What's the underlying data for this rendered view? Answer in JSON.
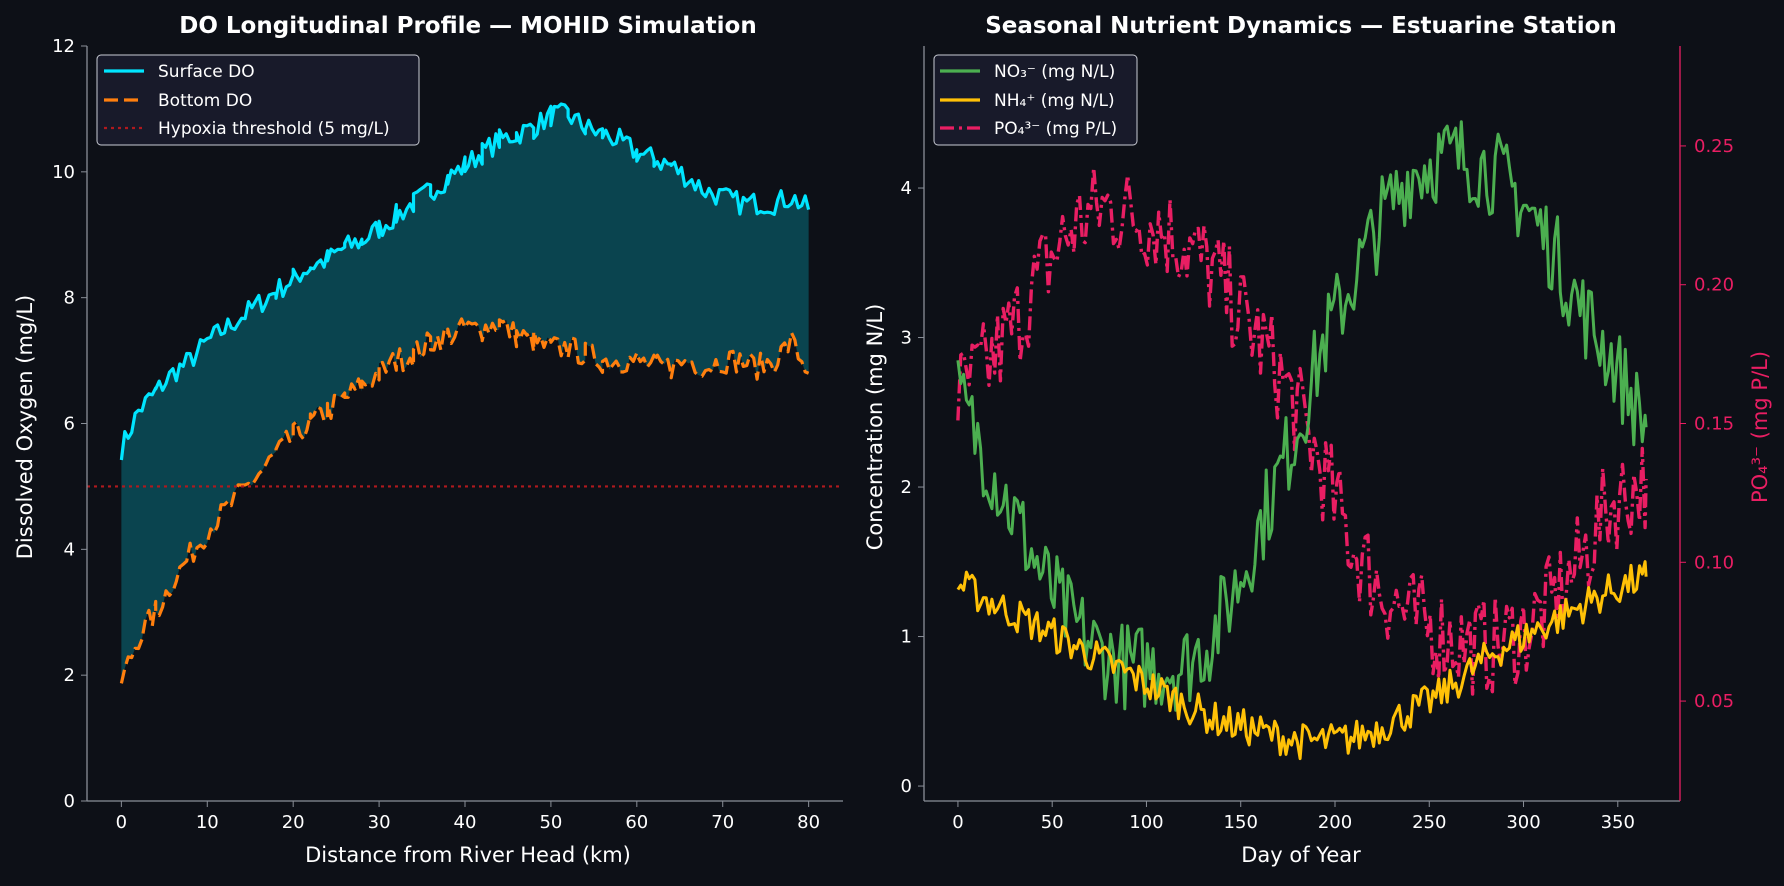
{
  "colors": {
    "background": "#0d1017",
    "axes": "#8a8f98",
    "text": "#ffffff",
    "surface": "#00e5ff",
    "bottom": "#ff7f0e",
    "fill": "#0a4d59",
    "hypoxia": "#b0191e",
    "no3": "#4caf50",
    "nh4": "#ffc107",
    "po4": "#e91e63",
    "legend_bg": "#1a1c2c"
  },
  "chart_data": [
    {
      "type": "line",
      "title": "DO Longitudinal Profile — MOHID Simulation",
      "xlabel": "Distance from River Head (km)",
      "ylabel": "Dissolved Oxygen (mg/L)",
      "xlim": [
        -4,
        84
      ],
      "ylim": [
        0,
        12
      ],
      "xticks": [
        0,
        10,
        20,
        30,
        40,
        50,
        60,
        70,
        80
      ],
      "yticks": [
        0,
        2,
        4,
        6,
        8,
        10,
        12
      ],
      "grid": false,
      "legend_position": "upper-left",
      "fill_between": [
        "Surface DO",
        "Bottom DO"
      ],
      "series": [
        {
          "name": "Surface DO",
          "style": "solid",
          "x": [
            0,
            2,
            4,
            6,
            8,
            10,
            12,
            14,
            16,
            18,
            20,
            22,
            24,
            26,
            28,
            30,
            32,
            34,
            36,
            38,
            40,
            42,
            44,
            46,
            48,
            50,
            52,
            54,
            56,
            58,
            60,
            62,
            64,
            66,
            68,
            70,
            72,
            74,
            76,
            78,
            80
          ],
          "y": [
            5.6,
            6.2,
            6.5,
            6.8,
            7.0,
            7.3,
            7.5,
            7.7,
            7.9,
            8.1,
            8.3,
            8.5,
            8.6,
            8.8,
            8.9,
            9.1,
            9.3,
            9.5,
            9.7,
            9.9,
            10.1,
            10.3,
            10.5,
            10.6,
            10.7,
            10.9,
            10.9,
            10.7,
            10.6,
            10.5,
            10.3,
            10.2,
            10.1,
            9.9,
            9.7,
            9.6,
            9.5,
            9.5,
            9.5,
            9.6,
            9.4
          ]
        },
        {
          "name": "Bottom DO",
          "style": "dashed",
          "x": [
            0,
            2,
            4,
            6,
            8,
            10,
            12,
            14,
            16,
            18,
            20,
            22,
            24,
            26,
            28,
            30,
            32,
            34,
            36,
            38,
            40,
            42,
            44,
            46,
            48,
            50,
            52,
            54,
            56,
            58,
            60,
            62,
            64,
            66,
            68,
            70,
            72,
            74,
            76,
            78,
            80
          ],
          "y": [
            1.9,
            2.6,
            3.0,
            3.5,
            3.9,
            4.3,
            4.6,
            4.9,
            5.2,
            5.5,
            5.8,
            6.0,
            6.2,
            6.4,
            6.6,
            6.8,
            7.0,
            7.1,
            7.3,
            7.4,
            7.5,
            7.5,
            7.6,
            7.4,
            7.3,
            7.2,
            7.2,
            7.1,
            7.0,
            7.0,
            7.0,
            6.9,
            6.9,
            7.0,
            6.9,
            7.0,
            7.0,
            6.9,
            7.0,
            7.3,
            6.8
          ]
        },
        {
          "name": "Hypoxia threshold (5 mg/L)",
          "style": "dotted",
          "hline": 5
        }
      ]
    },
    {
      "type": "line",
      "title": "Seasonal Nutrient Dynamics — Estuarine Station",
      "xlabel": "Day of Year",
      "ylabel": "Concentration (mg N/L)",
      "ylabel_right": "PO₄³⁻ (mg P/L)",
      "xlim": [
        -18,
        383
      ],
      "ylim": [
        -0.1,
        4.95
      ],
      "ylim_right": [
        0.014,
        0.286
      ],
      "xticks": [
        0,
        50,
        100,
        150,
        200,
        250,
        300,
        350
      ],
      "yticks": [
        0,
        1,
        2,
        3,
        4
      ],
      "yticks_right": [
        0.05,
        0.1,
        0.15,
        0.2,
        0.25
      ],
      "grid": false,
      "legend_position": "upper-left",
      "series": [
        {
          "name": "NO₃⁻ (mg N/L)",
          "axis": "left",
          "style": "solid",
          "x": [
            0,
            15,
            30,
            45,
            60,
            75,
            90,
            105,
            120,
            135,
            150,
            165,
            180,
            195,
            210,
            225,
            240,
            255,
            270,
            285,
            300,
            315,
            330,
            345,
            365
          ],
          "y": [
            2.6,
            2.2,
            1.8,
            1.4,
            1.1,
            0.9,
            0.8,
            0.8,
            0.8,
            1.0,
            1.4,
            1.9,
            2.4,
            3.0,
            3.4,
            3.8,
            4.1,
            4.2,
            4.2,
            4.1,
            3.9,
            3.6,
            3.2,
            2.9,
            2.4
          ]
        },
        {
          "name": "NH₄⁺ (mg N/L)",
          "axis": "left",
          "style": "solid",
          "x": [
            0,
            15,
            30,
            45,
            60,
            75,
            90,
            105,
            120,
            135,
            150,
            165,
            180,
            195,
            210,
            225,
            240,
            255,
            270,
            285,
            300,
            315,
            330,
            345,
            365
          ],
          "y": [
            1.35,
            1.25,
            1.15,
            1.05,
            0.95,
            0.85,
            0.75,
            0.65,
            0.55,
            0.45,
            0.4,
            0.35,
            0.3,
            0.3,
            0.32,
            0.4,
            0.5,
            0.6,
            0.75,
            0.9,
            1.0,
            1.1,
            1.2,
            1.3,
            1.4
          ]
        },
        {
          "name": "PO₄³⁻ (mg P/L)",
          "axis": "right",
          "style": "dashdot",
          "x": [
            0,
            15,
            30,
            45,
            60,
            75,
            90,
            105,
            120,
            135,
            150,
            165,
            180,
            195,
            210,
            225,
            240,
            255,
            270,
            285,
            300,
            315,
            330,
            345,
            365
          ],
          "y": [
            0.16,
            0.17,
            0.185,
            0.205,
            0.22,
            0.228,
            0.226,
            0.222,
            0.215,
            0.205,
            0.19,
            0.175,
            0.155,
            0.13,
            0.105,
            0.09,
            0.08,
            0.075,
            0.07,
            0.07,
            0.075,
            0.085,
            0.1,
            0.12,
            0.13
          ]
        }
      ]
    }
  ]
}
